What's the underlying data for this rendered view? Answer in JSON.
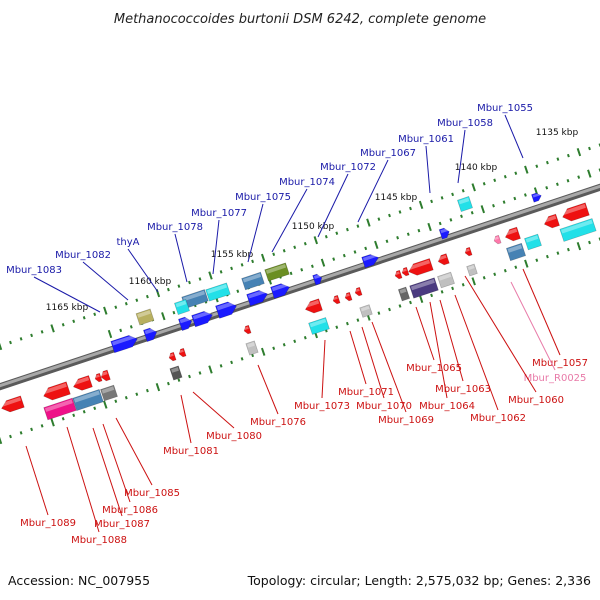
{
  "title": "Methanococcoides burtonii DSM 6242, complete genome",
  "footer": {
    "accession": "Accession: NC_007955",
    "summary": "Topology: circular; Length: 2,575,032 bp; Genes: 2,336"
  },
  "colors": {
    "forward_label": "#1a1aa8",
    "reverse_label": "#cc1111",
    "rna_label": "#e87aa8",
    "backbone": "#8a8a8a",
    "tick": "#2e7d2e"
  },
  "scale_labels": [
    "1135 kbp",
    "1140 kbp",
    "1145 kbp",
    "1150 kbp",
    "1155 kbp",
    "1160 kbp",
    "1165 kbp"
  ],
  "forward_genes": [
    "Mbur_1055",
    "Mbur_1058",
    "Mbur_1061",
    "Mbur_1067",
    "Mbur_1072",
    "Mbur_1074",
    "Mbur_1075",
    "Mbur_1077",
    "Mbur_1078",
    "thyA",
    "Mbur_1082",
    "Mbur_1083"
  ],
  "reverse_genes": [
    "Mbur_1057",
    "Mbur_R0025",
    "Mbur_1060",
    "Mbur_1062",
    "Mbur_1063",
    "Mbur_1064",
    "Mbur_1065",
    "Mbur_1069",
    "Mbur_1070",
    "Mbur_1071",
    "Mbur_1073",
    "Mbur_1076",
    "Mbur_1080",
    "Mbur_1081",
    "Mbur_1085",
    "Mbur_1086",
    "Mbur_1087",
    "Mbur_1088",
    "Mbur_1089"
  ]
}
